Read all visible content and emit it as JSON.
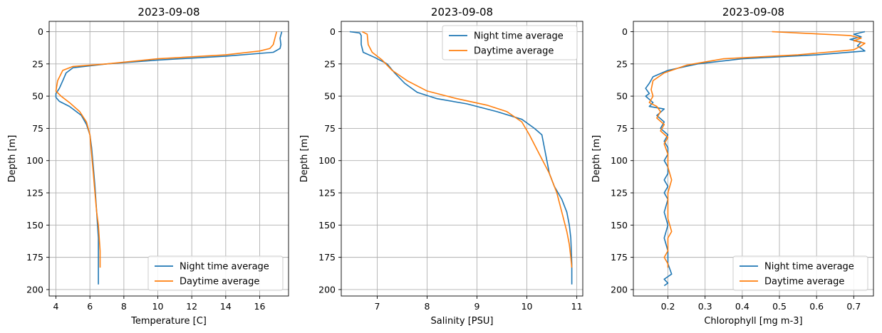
{
  "colors": {
    "night": "#1f77b4",
    "day": "#ff7f0e",
    "grid": "#b0b0b0"
  },
  "chart_data": [
    {
      "type": "line",
      "title": "2023-09-08",
      "xlabel": "Temperature [C]",
      "ylabel": "Depth [m]",
      "y_inverted": true,
      "xlim": [
        3.6,
        17.7
      ],
      "ylim": [
        205,
        -8
      ],
      "xticks": [
        4,
        6,
        8,
        10,
        12,
        14,
        16
      ],
      "yticks": [
        0,
        25,
        50,
        75,
        100,
        125,
        150,
        175,
        200
      ],
      "grid": true,
      "legend_position": "lower right",
      "series": [
        {
          "name": "Night time average",
          "color": "#1f77b4",
          "x": [
            17.3,
            17.2,
            17.25,
            17.2,
            16.8,
            14.0,
            10.0,
            7.0,
            5.0,
            4.6,
            4.4,
            4.2,
            4.0,
            4.0,
            4.2,
            4.8,
            5.5,
            5.8,
            6.0,
            6.1,
            6.2,
            6.3,
            6.4,
            6.5,
            6.5,
            6.5
          ],
          "y": [
            0,
            5,
            10,
            13,
            16,
            19,
            22,
            25,
            28,
            32,
            38,
            44,
            48,
            51,
            54,
            58,
            65,
            72,
            80,
            90,
            105,
            120,
            140,
            160,
            180,
            196
          ]
        },
        {
          "name": "Daytime average",
          "color": "#ff7f0e",
          "x": [
            17.0,
            16.9,
            16.8,
            16.6,
            16.0,
            14.0,
            10.0,
            7.0,
            5.0,
            4.4,
            4.1,
            4.0,
            4.3,
            4.8,
            5.4,
            5.8,
            6.0,
            6.1,
            6.2,
            6.3,
            6.4,
            6.5,
            6.55,
            6.6,
            6.6,
            6.6
          ],
          "y": [
            0,
            5,
            10,
            13,
            15,
            18,
            21,
            25,
            27,
            30,
            38,
            46,
            50,
            55,
            62,
            70,
            80,
            95,
            110,
            125,
            140,
            150,
            160,
            170,
            178,
            183
          ]
        }
      ]
    },
    {
      "type": "line",
      "title": "2023-09-08",
      "xlabel": "Salinity [PSU]",
      "ylabel": "Depth [m]",
      "y_inverted": true,
      "xlim": [
        6.28,
        11.12
      ],
      "ylim": [
        205,
        -8
      ],
      "xticks": [
        7,
        8,
        9,
        10,
        11
      ],
      "yticks": [
        0,
        25,
        50,
        75,
        100,
        125,
        150,
        175,
        200
      ],
      "grid": true,
      "legend_position": "upper right",
      "series": [
        {
          "name": "Night time average",
          "color": "#1f77b4",
          "x": [
            6.45,
            6.65,
            6.68,
            6.68,
            6.72,
            6.95,
            7.2,
            7.35,
            7.55,
            7.8,
            8.2,
            8.8,
            9.4,
            9.9,
            10.15,
            10.3,
            10.35,
            10.4,
            10.45,
            10.55,
            10.7,
            10.8,
            10.85,
            10.88,
            10.9,
            10.9
          ],
          "y": [
            0,
            1,
            3,
            10,
            16,
            20,
            25,
            32,
            40,
            47,
            52,
            56,
            62,
            68,
            75,
            80,
            90,
            100,
            110,
            120,
            130,
            140,
            150,
            160,
            180,
            196
          ]
        },
        {
          "name": "Daytime average",
          "color": "#ff7f0e",
          "x": [
            6.7,
            6.8,
            6.82,
            6.9,
            7.1,
            7.3,
            7.6,
            8.0,
            8.6,
            9.2,
            9.6,
            9.9,
            10.05,
            10.25,
            10.45,
            10.6,
            10.7,
            10.8,
            10.85,
            10.88,
            10.9
          ],
          "y": [
            0,
            2,
            10,
            16,
            22,
            30,
            38,
            46,
            52,
            57,
            62,
            70,
            80,
            95,
            110,
            125,
            140,
            155,
            165,
            175,
            183
          ]
        }
      ]
    },
    {
      "type": "line",
      "title": "2023-09-08",
      "xlabel": "Chlorophyll [mg m-3]",
      "ylabel": "Depth [m]",
      "y_inverted": true,
      "xlim": [
        0.107,
        0.753
      ],
      "ylim": [
        205,
        -8
      ],
      "xticks": [
        0.2,
        0.3,
        0.4,
        0.5,
        0.6,
        0.7
      ],
      "yticks": [
        0,
        25,
        50,
        75,
        100,
        125,
        150,
        175,
        200
      ],
      "grid": true,
      "legend_position": "lower right",
      "series": [
        {
          "name": "Night time average",
          "color": "#1f77b4",
          "x": [
            0.73,
            0.7,
            0.72,
            0.69,
            0.72,
            0.71,
            0.73,
            0.6,
            0.4,
            0.28,
            0.2,
            0.16,
            0.15,
            0.14,
            0.15,
            0.14,
            0.16,
            0.15,
            0.19,
            0.17,
            0.19,
            0.18,
            0.2,
            0.19,
            0.2,
            0.2,
            0.19,
            0.2,
            0.2,
            0.19,
            0.2,
            0.19,
            0.2,
            0.19,
            0.2,
            0.19,
            0.2,
            0.2,
            0.21,
            0.19,
            0.2,
            0.19
          ],
          "y": [
            0,
            2,
            4,
            6,
            8,
            11,
            15,
            18,
            21,
            25,
            30,
            35,
            40,
            44,
            48,
            50,
            55,
            58,
            60,
            65,
            70,
            75,
            80,
            85,
            90,
            95,
            100,
            105,
            110,
            115,
            120,
            125,
            130,
            140,
            150,
            160,
            170,
            180,
            188,
            192,
            195,
            197
          ]
        },
        {
          "name": "Daytime average",
          "color": "#ff7f0e",
          "x": [
            0.48,
            0.55,
            0.69,
            0.72,
            0.7,
            0.73,
            0.72,
            0.7,
            0.55,
            0.35,
            0.25,
            0.19,
            0.16,
            0.155,
            0.16,
            0.15,
            0.17,
            0.18,
            0.17,
            0.19,
            0.18,
            0.2,
            0.19,
            0.2,
            0.2,
            0.21,
            0.2,
            0.2,
            0.2,
            0.21,
            0.2,
            0.2,
            0.2,
            0.19,
            0.2,
            0.2
          ],
          "y": [
            0,
            1,
            3,
            5,
            7,
            9,
            11,
            14,
            18,
            21,
            26,
            32,
            38,
            45,
            50,
            55,
            58,
            62,
            67,
            72,
            77,
            82,
            87,
            95,
            105,
            115,
            125,
            135,
            145,
            155,
            160,
            165,
            170,
            175,
            180,
            183
          ]
        }
      ]
    }
  ]
}
